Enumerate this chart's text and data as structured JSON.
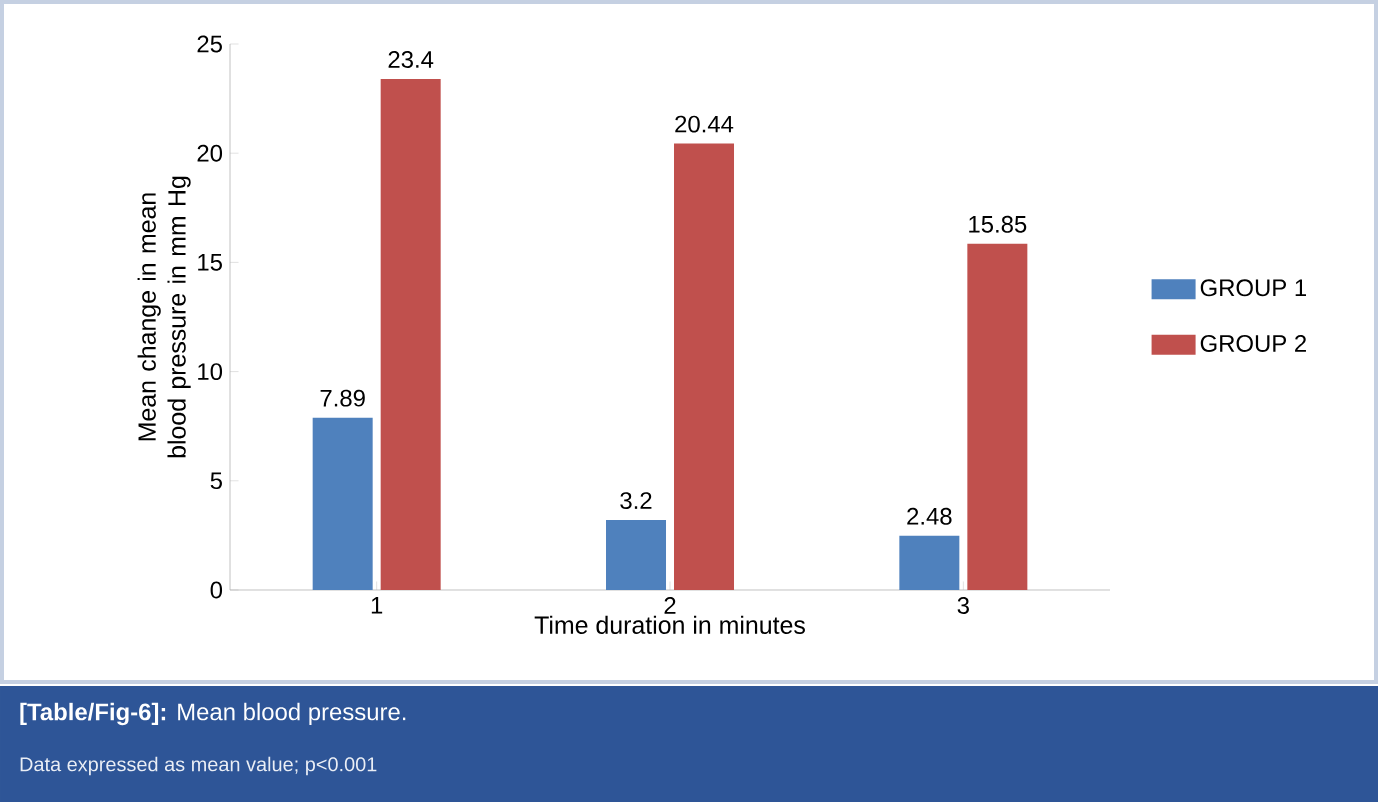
{
  "chart_data": {
    "type": "bar",
    "title": "**[Table/Fig-6]:** Mean blood pressure.",
    "annotations": [
      "Data expressed as mean value; p<0.001"
    ],
    "xlabel": "Time duration in minutes",
    "ylabel": "Mean change in mean blood pressure in mm Hg",
    "categories": [
      "1",
      "2",
      "3"
    ],
    "series": [
      {
        "name": "GROUP 1",
        "color": "#4f81bd",
        "values": [
          7.89,
          3.2,
          2.48
        ]
      },
      {
        "name": "GROUP 2",
        "color": "#c0504d",
        "values": [
          23.4,
          20.44,
          15.85
        ]
      }
    ],
    "ylim": [
      0,
      25
    ],
    "yticks": [
      0,
      5,
      10,
      15,
      20,
      25
    ],
    "data_labels": true,
    "legend": "right",
    "grid": false
  }
}
